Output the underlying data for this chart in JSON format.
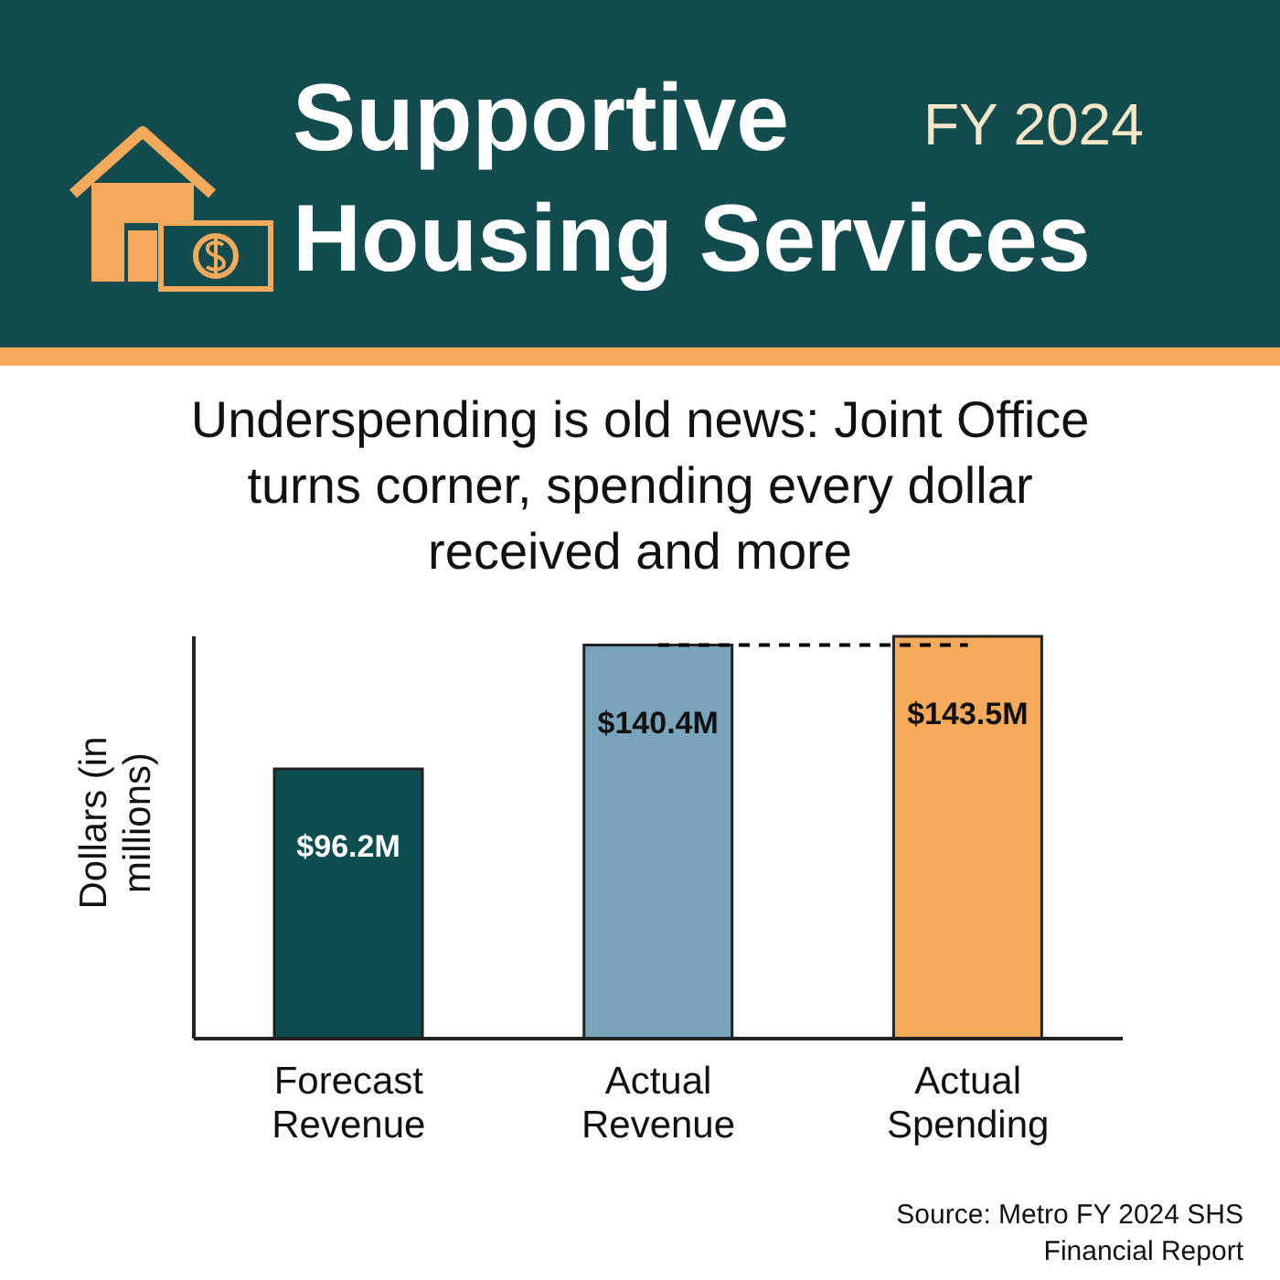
{
  "chart_data": {
    "type": "bar",
    "title": "Supportive Housing Services",
    "subtitle": "FY 2024",
    "ylabel": "Dollars (in millions)",
    "categories": [
      "Forecast Revenue",
      "Actual Revenue",
      "Actual Spending"
    ],
    "values": [
      96.2,
      140.4,
      143.5
    ],
    "colors": [
      "#0d4d4f",
      "#7aa3bc",
      "#f4a95b"
    ],
    "value_labels": [
      "$96.2M",
      "$140.4M",
      "$143.5M"
    ],
    "relative": false,
    "ref_lines": [
      {
        "axis": "y",
        "value": 140.4,
        "line_style": "dashed",
        "color": "#000000"
      }
    ],
    "annotations": [
      "Underspending is old news: Joint Office turns corner, spending every dollar received and more",
      "Source: Metro FY 2024 SHS Financial Report"
    ]
  }
}
